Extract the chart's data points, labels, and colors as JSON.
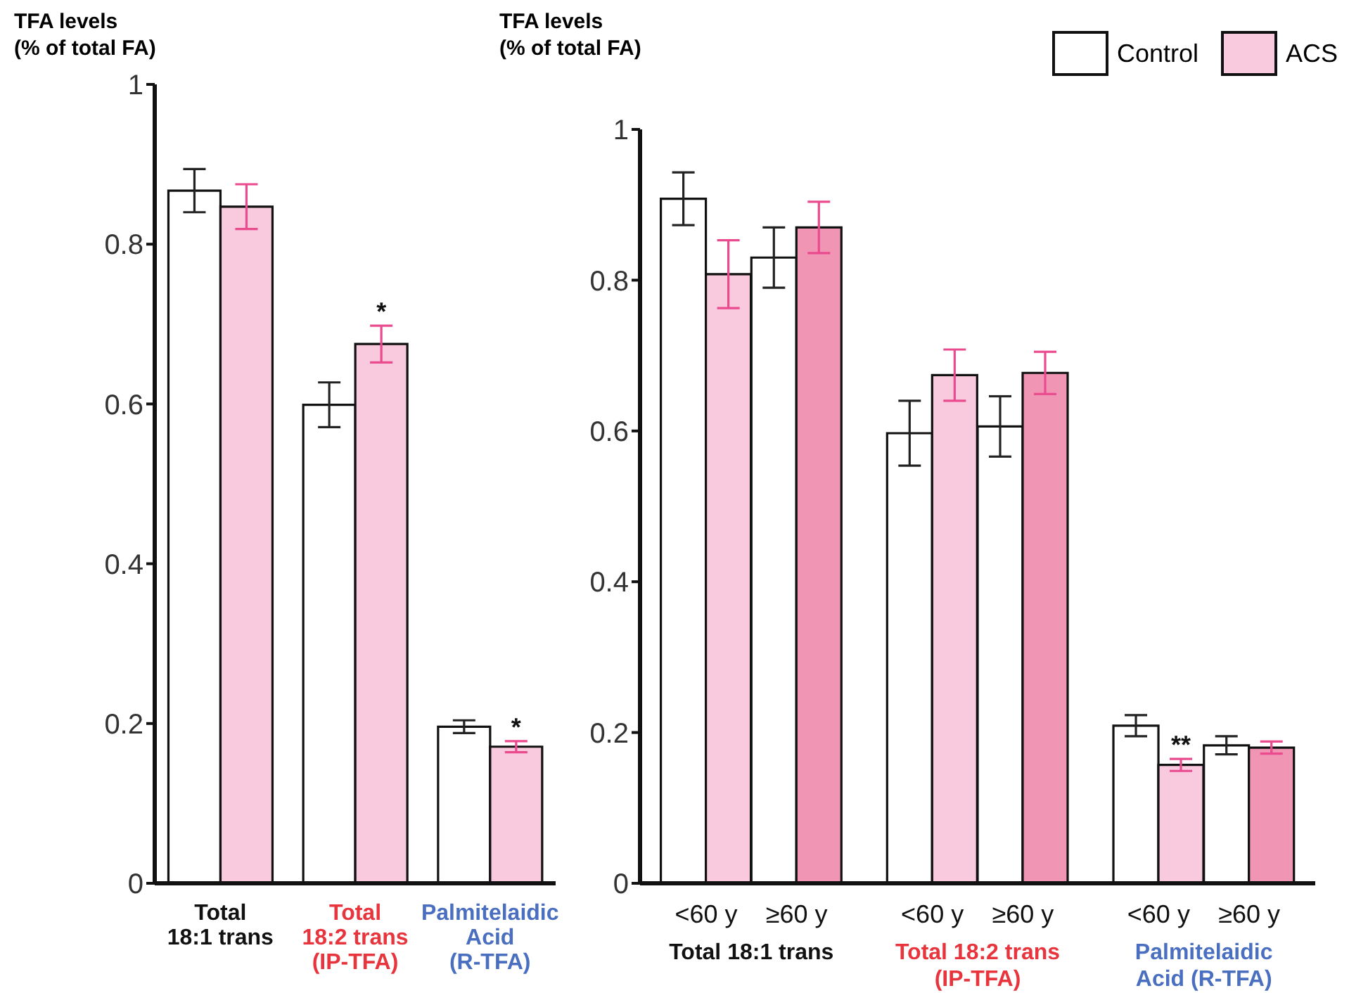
{
  "chart_data": [
    {
      "type": "bar",
      "ylabel": "TFA levels\n(% of total FA)",
      "categories": [
        "Total\n18:1 trans",
        "Total\n18:2 trans\n(IP-TFA)",
        "Palmitelaidic\nAcid\n(R-TFA)"
      ],
      "ylim": [
        0,
        1
      ],
      "yticks": [
        0,
        0.2,
        0.4,
        0.6,
        0.8,
        1
      ],
      "series": [
        {
          "color": "#ffffff",
          "values": [
            0.867,
            0.599,
            0.196
          ],
          "errors": [
            0.027,
            0.028,
            0.008
          ]
        },
        {
          "color": "#f9c9dd",
          "values": [
            0.847,
            0.675,
            0.171
          ],
          "errors": [
            0.028,
            0.023,
            0.007
          ],
          "value_labels": [
            null,
            "*",
            "*"
          ]
        }
      ]
    },
    {
      "type": "bar",
      "ylabel": "TFA levels\n(% of total FA)",
      "categories": [
        "<60 y",
        "≥60 y",
        "<60 y",
        "≥60 y",
        "<60 y",
        "≥60 y"
      ],
      "annotations": [
        "Total 18:1 trans",
        "Total 18:2 trans\n(IP-TFA)",
        "Palmitelaidic\nAcid (R-TFA)"
      ],
      "ylim": [
        0,
        1
      ],
      "yticks": [
        0,
        0.2,
        0.4,
        0.6,
        0.8,
        1
      ],
      "legend": "top right",
      "series": [
        {
          "name": "Control",
          "color": "#ffffff",
          "values": [
            0.908,
            0.83,
            0.597,
            0.606,
            0.209,
            0.183
          ],
          "errors": [
            0.035,
            0.04,
            0.043,
            0.04,
            0.014,
            0.012
          ]
        },
        {
          "name": "ACS",
          "color": "#f9c9dd",
          "colors": [
            "#f9c9dd",
            "#f095b4",
            "#f9c9dd",
            "#f095b4",
            "#f9c9dd",
            "#f095b4"
          ],
          "values": [
            0.808,
            0.87,
            0.674,
            0.677,
            0.157,
            0.18
          ],
          "errors": [
            0.045,
            0.034,
            0.034,
            0.028,
            0.008,
            0.008
          ],
          "value_labels": [
            null,
            null,
            null,
            null,
            "**",
            null
          ]
        }
      ]
    }
  ]
}
